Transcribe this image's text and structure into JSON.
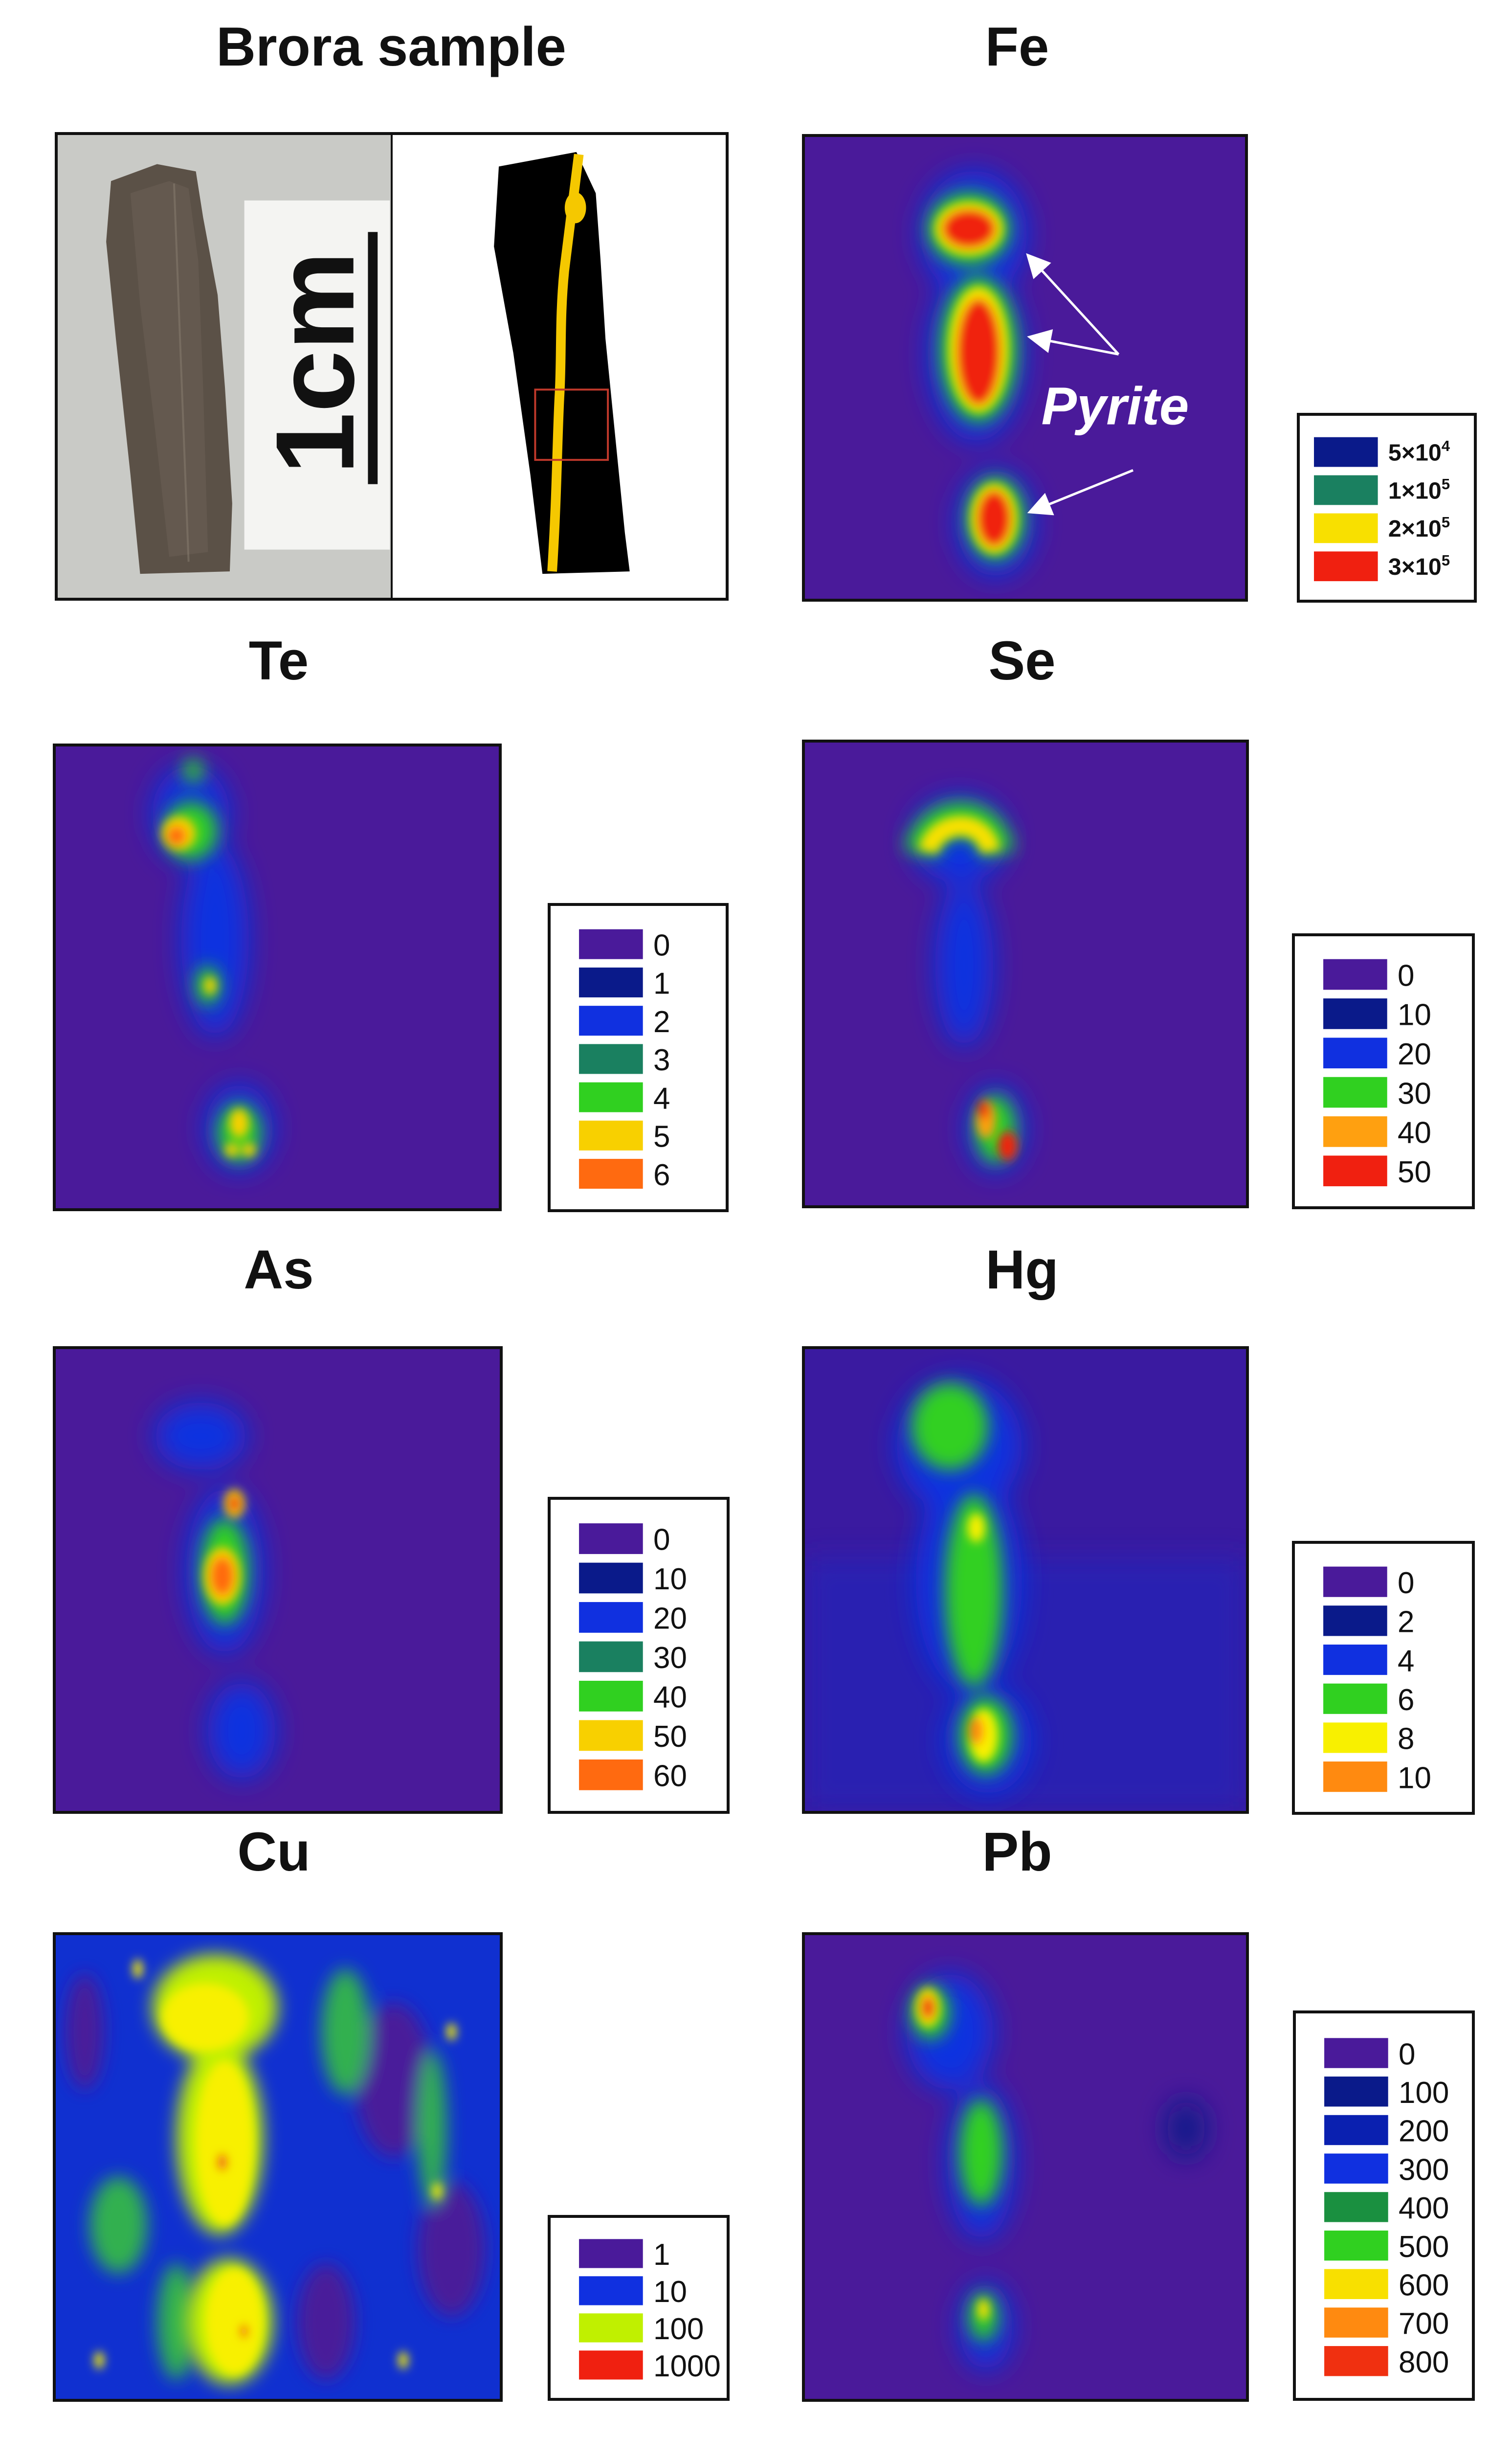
{
  "titles": {
    "brora": "Brora sample",
    "fe": "Fe",
    "te": "Te",
    "se": "Se",
    "as": "As",
    "hg": "Hg",
    "cu": "Cu",
    "pb": "Pb"
  },
  "photo": {
    "scale_label": "1cm"
  },
  "annotation": {
    "pyrite": "Pyrite"
  },
  "colors": {
    "background_purple": "#4a1a9a",
    "navy": "#0a1a8a",
    "blue": "#1030e0",
    "teal": "#1a8060",
    "green": "#30d020",
    "yellow": "#f8e000",
    "orange": "#ff7a10",
    "red": "#f02010",
    "photo_bg": "#c8c8c4",
    "shale": "#5a5046",
    "vein": "#f5c800"
  },
  "legends": {
    "fe": [
      {
        "label": "5×10",
        "exp": "4",
        "color": "#0a1a8a"
      },
      {
        "label": "1×10",
        "exp": "5",
        "color": "#1a8060"
      },
      {
        "label": "2×10",
        "exp": "5",
        "color": "#f8e000"
      },
      {
        "label": "3×10",
        "exp": "5",
        "color": "#f02010"
      }
    ],
    "te": [
      {
        "label": "0",
        "color": "#4a1a9a"
      },
      {
        "label": "1",
        "color": "#0a1a8a"
      },
      {
        "label": "2",
        "color": "#1030e0"
      },
      {
        "label": "3",
        "color": "#1a8060"
      },
      {
        "label": "4",
        "color": "#30d020"
      },
      {
        "label": "5",
        "color": "#f8d000"
      },
      {
        "label": "6",
        "color": "#ff6a10"
      }
    ],
    "se": [
      {
        "label": "0",
        "color": "#4a1a9a"
      },
      {
        "label": "10",
        "color": "#0a1a8a"
      },
      {
        "label": "20",
        "color": "#1030e0"
      },
      {
        "label": "30",
        "color": "#30d020"
      },
      {
        "label": "40",
        "color": "#ffa010"
      },
      {
        "label": "50",
        "color": "#f02010"
      }
    ],
    "as": [
      {
        "label": "0",
        "color": "#4a1a9a"
      },
      {
        "label": "10",
        "color": "#0a1a8a"
      },
      {
        "label": "20",
        "color": "#1030e0"
      },
      {
        "label": "30",
        "color": "#1a8060"
      },
      {
        "label": "40",
        "color": "#30d020"
      },
      {
        "label": "50",
        "color": "#f8d000"
      },
      {
        "label": "60",
        "color": "#ff6a10"
      }
    ],
    "hg": [
      {
        "label": "0",
        "color": "#4a1a9a"
      },
      {
        "label": "2",
        "color": "#0a1a8a"
      },
      {
        "label": "4",
        "color": "#1030e0"
      },
      {
        "label": "6",
        "color": "#30d020"
      },
      {
        "label": "8",
        "color": "#f8f000"
      },
      {
        "label": "10",
        "color": "#ff8a10"
      }
    ],
    "cu": [
      {
        "label": "1",
        "color": "#4a1a9a"
      },
      {
        "label": "10",
        "color": "#1030e0"
      },
      {
        "label": "100",
        "color": "#c0f000"
      },
      {
        "label": "1000",
        "color": "#f02010"
      }
    ],
    "pb": [
      {
        "label": "0",
        "color": "#4a1a9a"
      },
      {
        "label": "100",
        "color": "#0a1a8a"
      },
      {
        "label": "200",
        "color": "#0a20b0"
      },
      {
        "label": "300",
        "color": "#1030e0"
      },
      {
        "label": "400",
        "color": "#1a9040"
      },
      {
        "label": "500",
        "color": "#30d020"
      },
      {
        "label": "600",
        "color": "#f8e000"
      },
      {
        "label": "700",
        "color": "#ff8a10"
      },
      {
        "label": "800",
        "color": "#f03010"
      }
    ]
  }
}
